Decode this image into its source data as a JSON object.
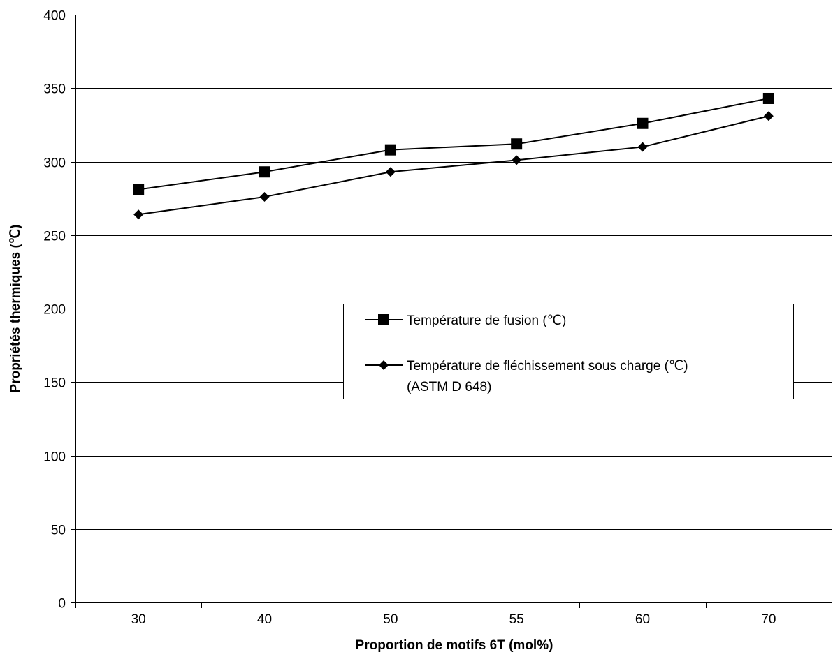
{
  "chart_data": {
    "type": "line",
    "categories": [
      "30",
      "40",
      "50",
      "55",
      "60",
      "70"
    ],
    "series": [
      {
        "name": "Température de fusion (℃)",
        "marker": "square",
        "values": [
          281,
          293,
          308,
          312,
          326,
          343
        ]
      },
      {
        "name": "Température de fléchissement sous charge (℃)",
        "name_line2": "(ASTM D 648)",
        "marker": "diamond",
        "values": [
          264,
          276,
          293,
          301,
          310,
          331
        ]
      }
    ],
    "xlabel": "Proportion de motifs 6T (mol%)",
    "ylabel": "Propriétés thermiques (℃)",
    "ylim": [
      0,
      400
    ],
    "yticks": [
      0,
      50,
      100,
      150,
      200,
      250,
      300,
      350,
      400
    ],
    "grid": true,
    "legend_position": "center-right",
    "colors": {
      "line": "#000000",
      "grid": "#000000",
      "background": "#ffffff"
    }
  }
}
